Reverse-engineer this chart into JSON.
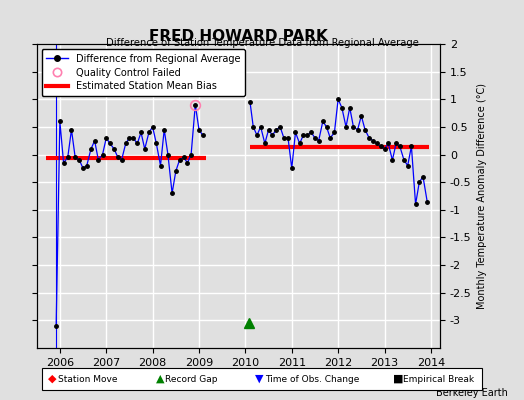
{
  "title": "FRED HOWARD PARK",
  "subtitle": "Difference of Station Temperature Data from Regional Average",
  "ylabel": "Monthly Temperature Anomaly Difference (°C)",
  "ylim": [
    -3.5,
    2.0
  ],
  "xlim": [
    2005.5,
    2014.2
  ],
  "yticks": [
    -3.0,
    -2.5,
    -2.0,
    -1.5,
    -1.0,
    -0.5,
    0.0,
    0.5,
    1.0,
    1.5,
    2.0
  ],
  "xticks": [
    2006,
    2007,
    2008,
    2009,
    2010,
    2011,
    2012,
    2013,
    2014
  ],
  "bg_color": "#e0e0e0",
  "grid_color": "#ffffff",
  "watermark": "Berkeley Earth",
  "segment1_bias": -0.07,
  "segment2_bias": 0.13,
  "segment1_x_start": 2005.7,
  "segment1_x_end": 2009.15,
  "segment2_x_start": 2010.1,
  "segment2_x_end": 2013.95,
  "gap_start": 2009.15,
  "gap_end": 2010.08,
  "record_gap_marker_x": 2010.08,
  "record_gap_marker_y": -3.05,
  "vertical_line_x": 2005.92,
  "data_x": [
    2005.92,
    2006.0,
    2006.08,
    2006.17,
    2006.25,
    2006.33,
    2006.42,
    2006.5,
    2006.58,
    2006.67,
    2006.75,
    2006.83,
    2006.92,
    2007.0,
    2007.08,
    2007.17,
    2007.25,
    2007.33,
    2007.42,
    2007.5,
    2007.58,
    2007.67,
    2007.75,
    2007.83,
    2007.92,
    2008.0,
    2008.08,
    2008.17,
    2008.25,
    2008.33,
    2008.42,
    2008.5,
    2008.58,
    2008.67,
    2008.75,
    2008.83,
    2008.92,
    2009.0,
    2009.08,
    2010.1,
    2010.17,
    2010.25,
    2010.33,
    2010.42,
    2010.5,
    2010.58,
    2010.67,
    2010.75,
    2010.83,
    2010.92,
    2011.0,
    2011.08,
    2011.17,
    2011.25,
    2011.33,
    2011.42,
    2011.5,
    2011.58,
    2011.67,
    2011.75,
    2011.83,
    2011.92,
    2012.0,
    2012.08,
    2012.17,
    2012.25,
    2012.33,
    2012.42,
    2012.5,
    2012.58,
    2012.67,
    2012.75,
    2012.83,
    2012.92,
    2013.0,
    2013.08,
    2013.17,
    2013.25,
    2013.33,
    2013.42,
    2013.5,
    2013.58,
    2013.67,
    2013.75,
    2013.83,
    2013.92
  ],
  "data_y": [
    -3.1,
    0.6,
    -0.15,
    -0.05,
    0.45,
    -0.05,
    -0.1,
    -0.25,
    -0.2,
    0.1,
    0.25,
    -0.1,
    0.0,
    0.3,
    0.2,
    0.1,
    -0.05,
    -0.1,
    0.2,
    0.3,
    0.3,
    0.2,
    0.4,
    0.1,
    0.4,
    0.5,
    0.2,
    -0.2,
    0.45,
    0.0,
    -0.7,
    -0.3,
    -0.1,
    -0.05,
    -0.15,
    0.0,
    0.9,
    0.45,
    0.35,
    0.95,
    0.5,
    0.35,
    0.5,
    0.2,
    0.45,
    0.35,
    0.45,
    0.5,
    0.3,
    0.3,
    -0.25,
    0.4,
    0.2,
    0.35,
    0.35,
    0.4,
    0.3,
    0.25,
    0.6,
    0.5,
    0.3,
    0.4,
    1.0,
    0.85,
    0.5,
    0.85,
    0.5,
    0.45,
    0.7,
    0.45,
    0.3,
    0.25,
    0.2,
    0.15,
    0.1,
    0.2,
    -0.1,
    0.2,
    0.15,
    -0.1,
    -0.2,
    0.15,
    -0.9,
    -0.5,
    -0.4,
    -0.85
  ],
  "qc_failed_x": [
    2008.92
  ],
  "qc_failed_y": [
    0.9
  ]
}
